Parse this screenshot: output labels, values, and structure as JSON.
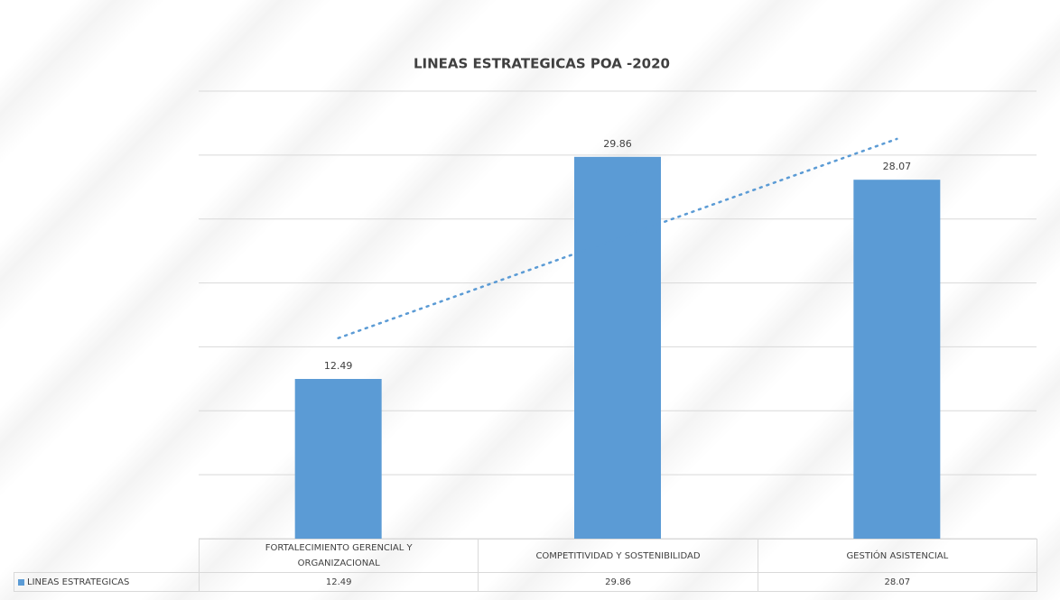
{
  "chart_data": {
    "type": "bar",
    "title": "LINEAS ESTRATEGICAS POA -2020",
    "categories": [
      "FORTALECIMIENTO GERENCIAL Y ORGANIZACIONAL",
      "COMPETITIVIDAD Y SOSTENIBILIDAD",
      "GESTIÓN ASISTENCIAL"
    ],
    "series": [
      {
        "name": "LINEAS ESTRATEGICAS",
        "color": "#5b9bd5",
        "values": [
          12.49,
          29.86,
          28.07
        ]
      }
    ],
    "ylim": [
      0,
      35
    ],
    "yticks": [
      0,
      5,
      10,
      15,
      20,
      25,
      30,
      35
    ],
    "grid": true,
    "trendline": "linear",
    "data_table": true
  }
}
